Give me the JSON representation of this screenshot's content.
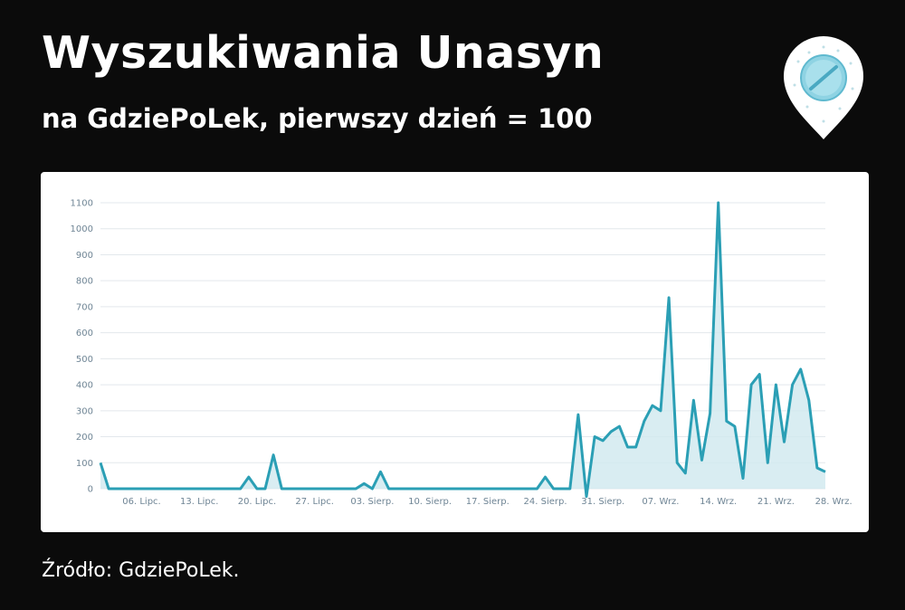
{
  "header": {
    "title": "Wyszukiwania Unasyn",
    "subtitle": "na GdziePoLek, pierwszy dzień = 100"
  },
  "footer": {
    "source": "Źródło: GdziePoLek."
  },
  "logo": {
    "icon": "pill-map-pin-icon"
  },
  "colors": {
    "line": "#2b9fb5",
    "area": "#cfe9ef",
    "grid": "#e3e8ec",
    "tick": "#6f8595",
    "background": "#0b0b0b"
  },
  "chart_data": {
    "type": "area",
    "title": "Wyszukiwania Unasyn",
    "subtitle": "na GdziePoLek, pierwszy dzień = 100",
    "xlabel": "",
    "ylabel": "",
    "ylim": [
      0,
      1100
    ],
    "yticks": [
      0,
      100,
      200,
      300,
      400,
      500,
      600,
      700,
      800,
      900,
      1000,
      1100
    ],
    "grid": true,
    "legend": "none",
    "x_labels": [
      {
        "label": "06. Lipc.",
        "day": 5
      },
      {
        "label": "13. Lipc.",
        "day": 12
      },
      {
        "label": "20. Lipc.",
        "day": 19
      },
      {
        "label": "27. Lipc.",
        "day": 26
      },
      {
        "label": "03. Sierp.",
        "day": 33
      },
      {
        "label": "10. Sierp.",
        "day": 40
      },
      {
        "label": "17. Sierp.",
        "day": 47
      },
      {
        "label": "24. Sierp.",
        "day": 54
      },
      {
        "label": "31. Sierp.",
        "day": 61
      },
      {
        "label": "07. Wrz.",
        "day": 68
      },
      {
        "label": "14. Wrz.",
        "day": 75
      },
      {
        "label": "21. Wrz.",
        "day": 82
      },
      {
        "label": "28. Wrz.",
        "day": 89
      }
    ],
    "series": [
      {
        "values": [
          100,
          0,
          0,
          0,
          0,
          0,
          0,
          0,
          0,
          0,
          0,
          0,
          0,
          0,
          0,
          0,
          0,
          0,
          45,
          0,
          0,
          130,
          0,
          0,
          0,
          0,
          0,
          0,
          0,
          0,
          0,
          0,
          20,
          0,
          65,
          0,
          0,
          0,
          0,
          0,
          0,
          0,
          0,
          0,
          0,
          0,
          0,
          0,
          0,
          0,
          0,
          0,
          0,
          0,
          45,
          0,
          0,
          0,
          285,
          -30,
          200,
          185,
          220,
          240,
          160,
          160,
          260,
          320,
          300,
          735,
          100,
          60,
          340,
          110,
          290,
          1100,
          260,
          240,
          40,
          400,
          440,
          100,
          400,
          180,
          400,
          460,
          340,
          80,
          65
        ]
      }
    ]
  }
}
